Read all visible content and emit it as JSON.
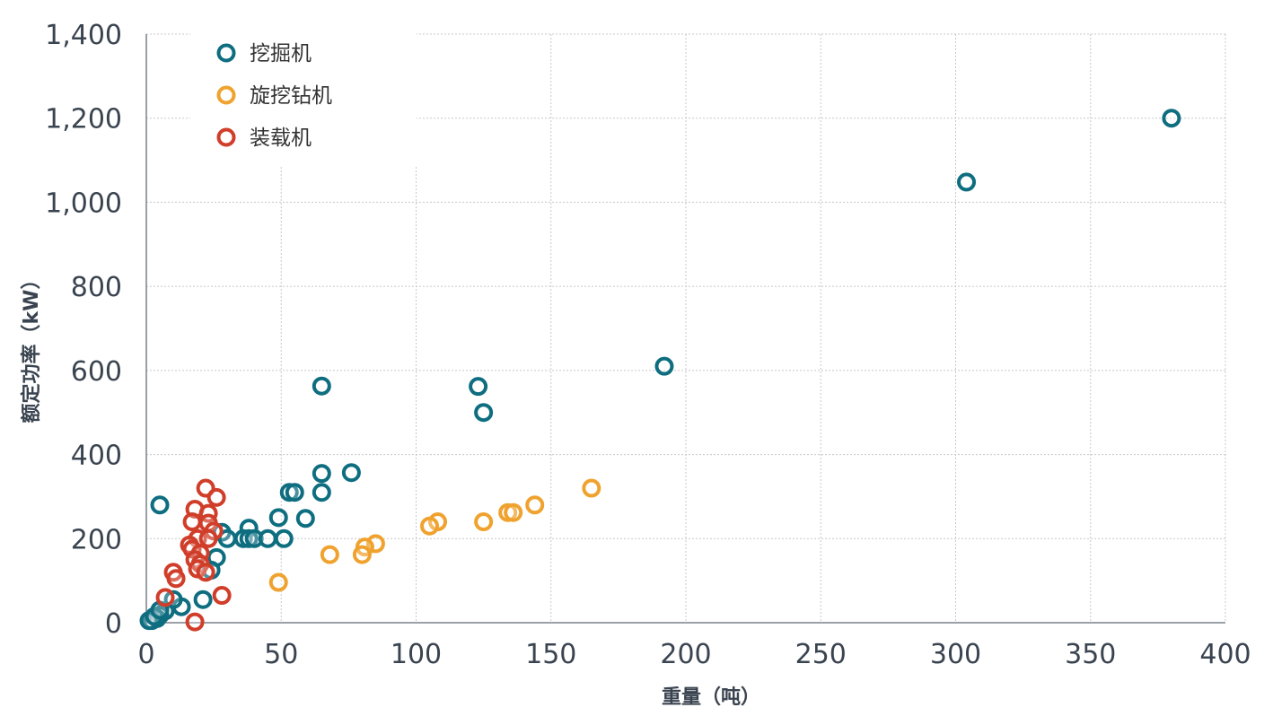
{
  "chart_data": {
    "type": "scatter",
    "title": "",
    "xlabel": "重量（吨）",
    "ylabel": "额定功率（kW）",
    "xlim": [
      0,
      400
    ],
    "ylim": [
      0,
      1400
    ],
    "x_ticks": [
      0,
      50,
      100,
      150,
      200,
      250,
      300,
      350,
      400
    ],
    "y_ticks": [
      0,
      200,
      400,
      600,
      800,
      1000,
      1200,
      1400
    ],
    "x_tick_labels": [
      "0",
      "50",
      "100",
      "150",
      "200",
      "250",
      "300",
      "350",
      "400"
    ],
    "y_tick_labels": [
      "0",
      "200",
      "400",
      "600",
      "800",
      "1,000",
      "1,200",
      "1,400"
    ],
    "grid": true,
    "legend_position": "top-left",
    "marker": "hollow-circle",
    "series": [
      {
        "name": "挖掘机",
        "color": "#0e6e80",
        "points": [
          [
            380,
            1200
          ],
          [
            304,
            1048
          ],
          [
            192,
            610
          ],
          [
            65,
            563
          ],
          [
            123,
            562
          ],
          [
            125,
            500
          ],
          [
            65,
            355
          ],
          [
            76,
            357
          ],
          [
            65,
            310
          ],
          [
            53,
            310
          ],
          [
            55,
            310
          ],
          [
            5,
            280
          ],
          [
            59,
            248
          ],
          [
            49,
            250
          ],
          [
            28,
            215
          ],
          [
            38,
            225
          ],
          [
            30,
            200
          ],
          [
            36,
            200
          ],
          [
            38,
            200
          ],
          [
            40,
            200
          ],
          [
            45,
            200
          ],
          [
            51,
            200
          ],
          [
            26,
            155
          ],
          [
            24,
            125
          ],
          [
            21,
            55
          ],
          [
            13,
            38
          ],
          [
            10,
            55
          ],
          [
            7,
            28
          ],
          [
            5,
            18
          ],
          [
            4,
            10
          ],
          [
            2,
            5
          ],
          [
            1,
            5
          ],
          [
            3,
            15
          ],
          [
            5,
            30
          ]
        ]
      },
      {
        "name": "旋挖钻机",
        "color": "#f0a22e",
        "points": [
          [
            165,
            320
          ],
          [
            144,
            280
          ],
          [
            134,
            262
          ],
          [
            136,
            262
          ],
          [
            125,
            240
          ],
          [
            108,
            240
          ],
          [
            105,
            230
          ],
          [
            85,
            188
          ],
          [
            81,
            180
          ],
          [
            80,
            162
          ],
          [
            68,
            162
          ],
          [
            49,
            96
          ]
        ]
      },
      {
        "name": "装载机",
        "color": "#d03e2a",
        "points": [
          [
            22,
            320
          ],
          [
            26,
            298
          ],
          [
            18,
            270
          ],
          [
            23,
            260
          ],
          [
            17,
            240
          ],
          [
            23,
            237
          ],
          [
            25,
            218
          ],
          [
            19,
            200
          ],
          [
            23,
            200
          ],
          [
            16,
            185
          ],
          [
            17,
            175
          ],
          [
            20,
            165
          ],
          [
            18,
            150
          ],
          [
            20,
            140
          ],
          [
            19,
            128
          ],
          [
            10,
            120
          ],
          [
            22,
            120
          ],
          [
            11,
            105
          ],
          [
            28,
            65
          ],
          [
            7,
            60
          ],
          [
            18,
            2
          ]
        ]
      }
    ]
  }
}
